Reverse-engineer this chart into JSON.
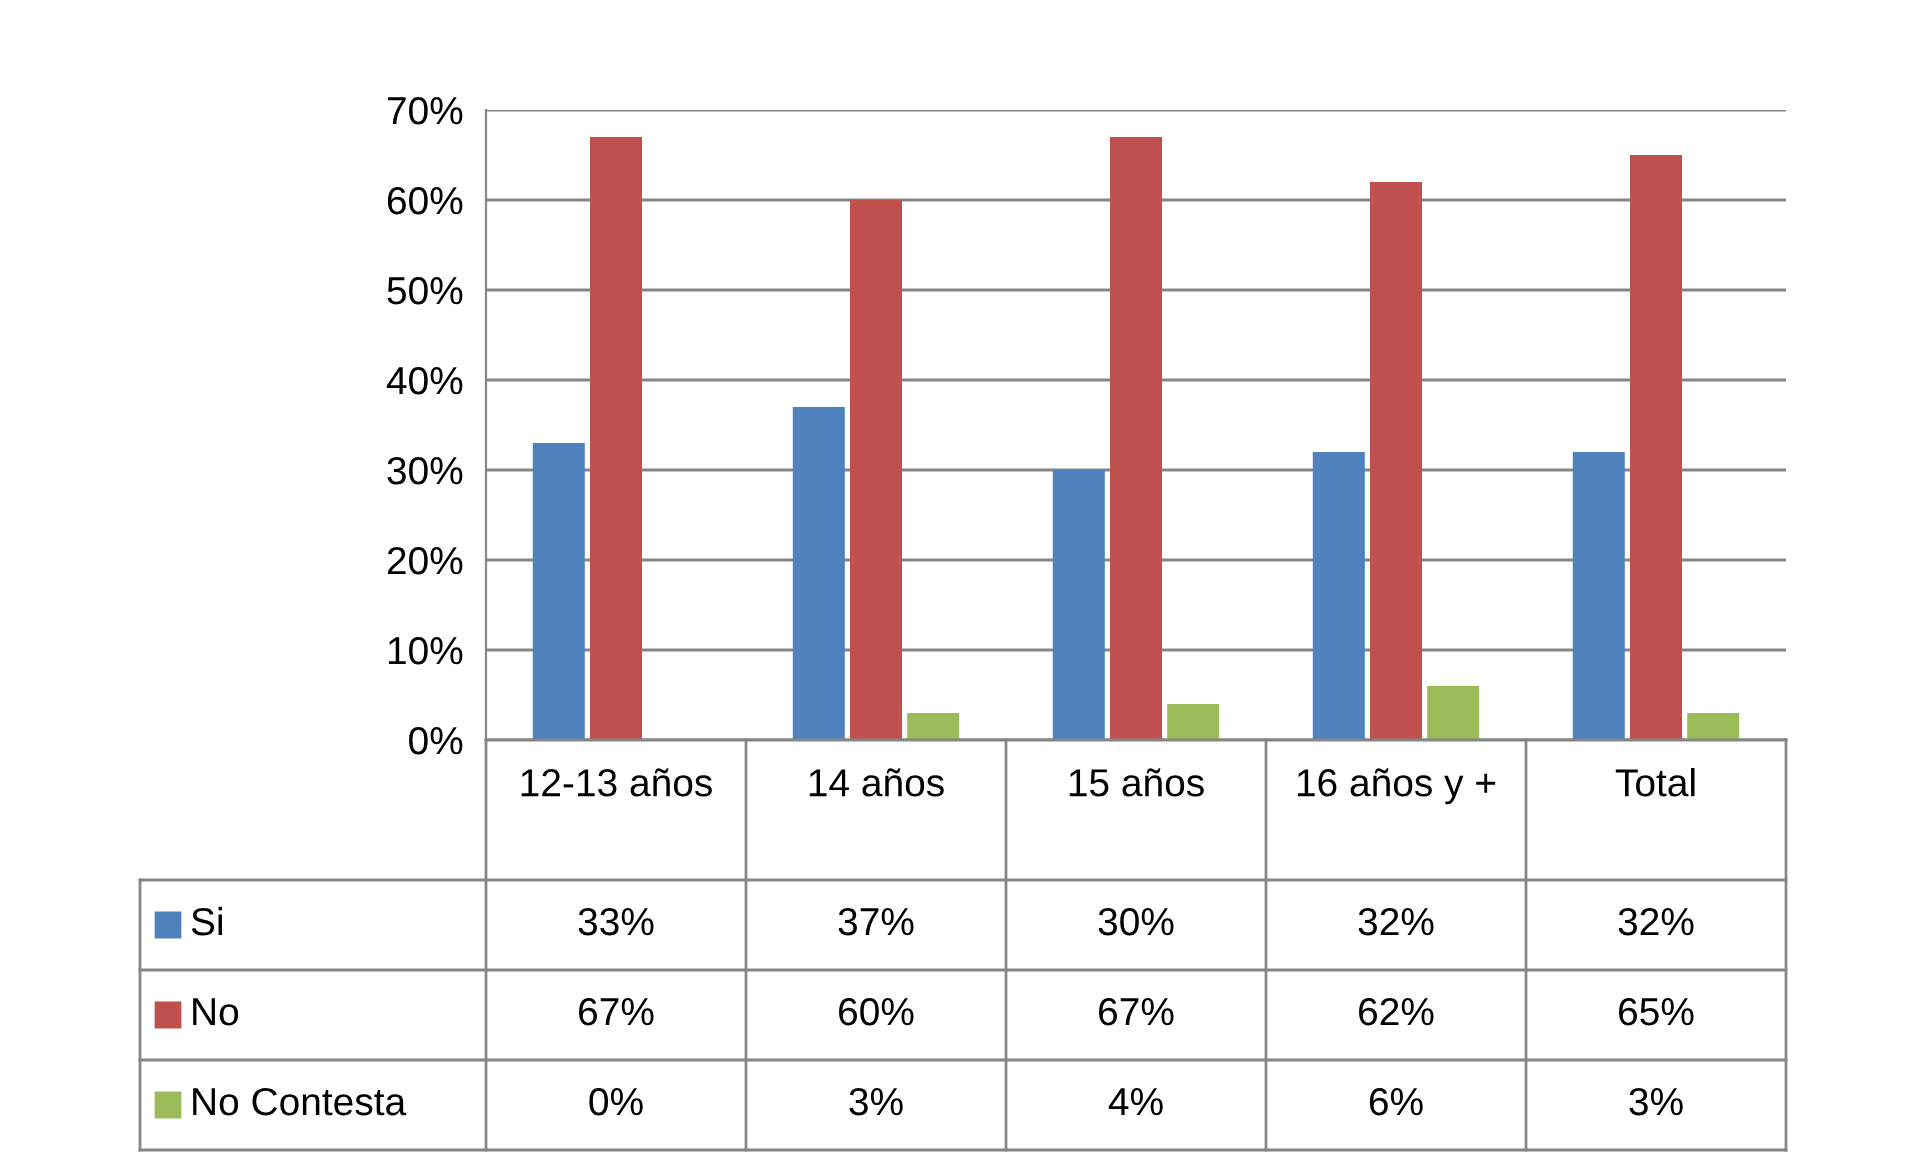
{
  "chart_data": {
    "type": "bar",
    "categories": [
      "12-13 años",
      "14 años",
      "15 años",
      "16 años y +",
      "Total"
    ],
    "series": [
      {
        "name": "Si",
        "color": "#4f81bd",
        "values": [
          33,
          37,
          30,
          32,
          32
        ],
        "value_labels": [
          "33%",
          "37%",
          "30%",
          "32%",
          "32%"
        ]
      },
      {
        "name": "No",
        "color": "#c0504d",
        "values": [
          67,
          60,
          67,
          62,
          65
        ],
        "value_labels": [
          "67%",
          "60%",
          "67%",
          "62%",
          "65%"
        ]
      },
      {
        "name": "No Contesta",
        "color": "#9bbb59",
        "values": [
          0,
          3,
          4,
          6,
          3
        ],
        "value_labels": [
          "0%",
          "3%",
          "4%",
          "6%",
          "3%"
        ]
      }
    ],
    "ylim": [
      0,
      70
    ],
    "yticks": [
      {
        "value": 0,
        "label": "0%"
      },
      {
        "value": 10,
        "label": "10%"
      },
      {
        "value": 20,
        "label": "20%"
      },
      {
        "value": 30,
        "label": "30%"
      },
      {
        "value": 40,
        "label": "40%"
      },
      {
        "value": 50,
        "label": "50%"
      },
      {
        "value": 60,
        "label": "60%"
      },
      {
        "value": 70,
        "label": "70%"
      }
    ],
    "grid": "y",
    "legend": "bottom"
  }
}
